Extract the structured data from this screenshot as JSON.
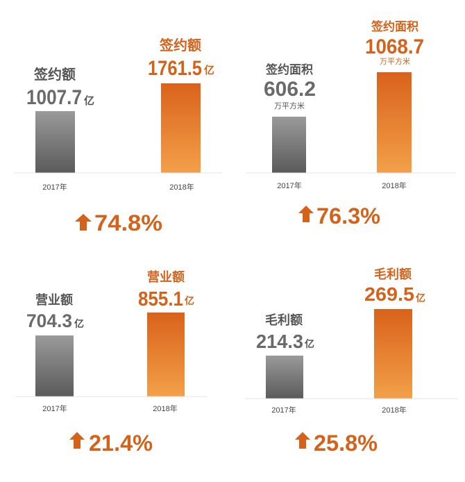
{
  "colors": {
    "accent": "#d4621a",
    "bar_gray_top": "#9a9a9a",
    "bar_gray_bottom": "#5a5a5a",
    "bar_orange_top": "#d9621a",
    "bar_orange_bottom": "#f3a04a"
  },
  "icons": {
    "growth": "up-arrow-icon"
  },
  "chart_data": [
    {
      "type": "bar",
      "categories": [
        "2017年",
        "2018年"
      ],
      "labels": [
        "签约额",
        "签约额"
      ],
      "value_text": [
        "1007.7",
        "1761.5"
      ],
      "unit": [
        "亿",
        "亿"
      ],
      "values": [
        1007.7,
        1761.5
      ],
      "growth": "74.8%"
    },
    {
      "type": "bar",
      "categories": [
        "2017年",
        "2018年"
      ],
      "labels": [
        "签约面积",
        "签约面积"
      ],
      "value_text": [
        "606.2",
        "1068.7"
      ],
      "unit": [
        "万平方米",
        "万平方米"
      ],
      "values": [
        606.2,
        1068.7
      ],
      "growth": "76.3%"
    },
    {
      "type": "bar",
      "categories": [
        "2017年",
        "2018年"
      ],
      "labels": [
        "营业额",
        "营业额"
      ],
      "value_text": [
        "704.3",
        "855.1"
      ],
      "unit": [
        "亿",
        "亿"
      ],
      "values": [
        704.3,
        855.1
      ],
      "growth": "21.4%"
    },
    {
      "type": "bar",
      "categories": [
        "2017年",
        "2018年"
      ],
      "labels": [
        "毛利额",
        "毛利额"
      ],
      "value_text": [
        "214.3",
        "269.5"
      ],
      "unit": [
        "亿",
        "亿"
      ],
      "values": [
        214.3,
        269.5
      ],
      "growth": "25.8%"
    }
  ]
}
